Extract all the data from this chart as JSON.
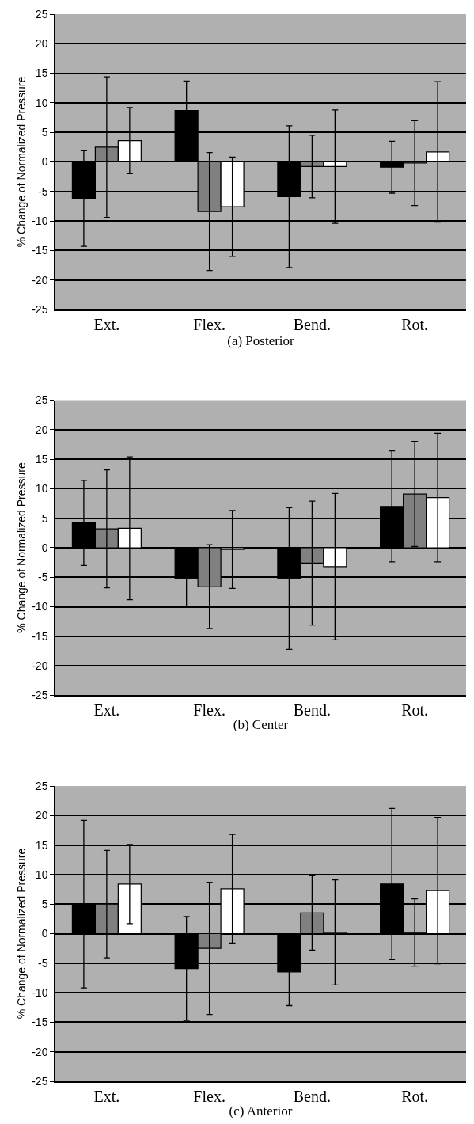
{
  "chart_data": [
    {
      "type": "bar",
      "xlabel": "(a) Posterior",
      "ylabel": "% Change of Normalized Pressure",
      "categories": [
        "Ext.",
        "Flex.",
        "Bend.",
        "Rot."
      ],
      "ylim": [
        -25,
        25
      ],
      "yticks": [
        -25,
        -20,
        -15,
        -10,
        -5,
        0,
        5,
        10,
        15,
        20,
        25
      ],
      "grid": "y",
      "series": [
        {
          "color": "#000000",
          "values": [
            -6.2,
            8.7,
            -5.9,
            -0.9
          ],
          "errors": [
            8.1,
            5.0,
            12.0,
            4.4
          ]
        },
        {
          "color": "#808080",
          "values": [
            2.5,
            -8.4,
            -0.8,
            -0.2
          ],
          "errors": [
            11.9,
            10.0,
            5.3,
            7.2
          ]
        },
        {
          "color": "#ffffff",
          "values": [
            3.6,
            -7.6,
            -0.8,
            1.7
          ],
          "errors": [
            5.6,
            8.4,
            9.6,
            11.9
          ]
        }
      ]
    },
    {
      "type": "bar",
      "xlabel": "(b) Center",
      "ylabel": "% Change of Normalized Pressure",
      "categories": [
        "Ext.",
        "Flex.",
        "Bend.",
        "Rot."
      ],
      "ylim": [
        -25,
        25
      ],
      "yticks": [
        -25,
        -20,
        -15,
        -10,
        -5,
        0,
        5,
        10,
        15,
        20,
        25
      ],
      "grid": "y",
      "series": [
        {
          "color": "#000000",
          "values": [
            4.2,
            -5.2,
            -5.2,
            7.0
          ],
          "errors": [
            7.2,
            4.9,
            12.0,
            9.4
          ]
        },
        {
          "color": "#808080",
          "values": [
            3.2,
            -6.6,
            -2.6,
            9.1
          ],
          "errors": [
            10.0,
            7.1,
            10.5,
            8.9
          ]
        },
        {
          "color": "#ffffff",
          "values": [
            3.3,
            -0.3,
            -3.2,
            8.5
          ],
          "errors": [
            12.1,
            6.6,
            12.4,
            10.9
          ]
        }
      ]
    },
    {
      "type": "bar",
      "xlabel": "(c) Anterior",
      "ylabel": "% Change of Normalized Pressure",
      "categories": [
        "Ext.",
        "Flex.",
        "Bend.",
        "Rot."
      ],
      "ylim": [
        -25,
        25
      ],
      "yticks": [
        -25,
        -20,
        -15,
        -10,
        -5,
        0,
        5,
        10,
        15,
        20,
        25
      ],
      "grid": "y",
      "series": [
        {
          "color": "#000000",
          "values": [
            5.0,
            -5.9,
            -6.5,
            8.4
          ],
          "errors": [
            14.2,
            8.8,
            5.7,
            12.8
          ]
        },
        {
          "color": "#808080",
          "values": [
            5.0,
            -2.5,
            3.5,
            0.2
          ],
          "errors": [
            9.1,
            11.2,
            6.3,
            5.7
          ]
        },
        {
          "color": "#ffffff",
          "values": [
            8.4,
            7.6,
            0.2,
            7.3
          ],
          "errors": [
            6.7,
            9.2,
            8.9,
            12.4
          ]
        }
      ]
    }
  ]
}
